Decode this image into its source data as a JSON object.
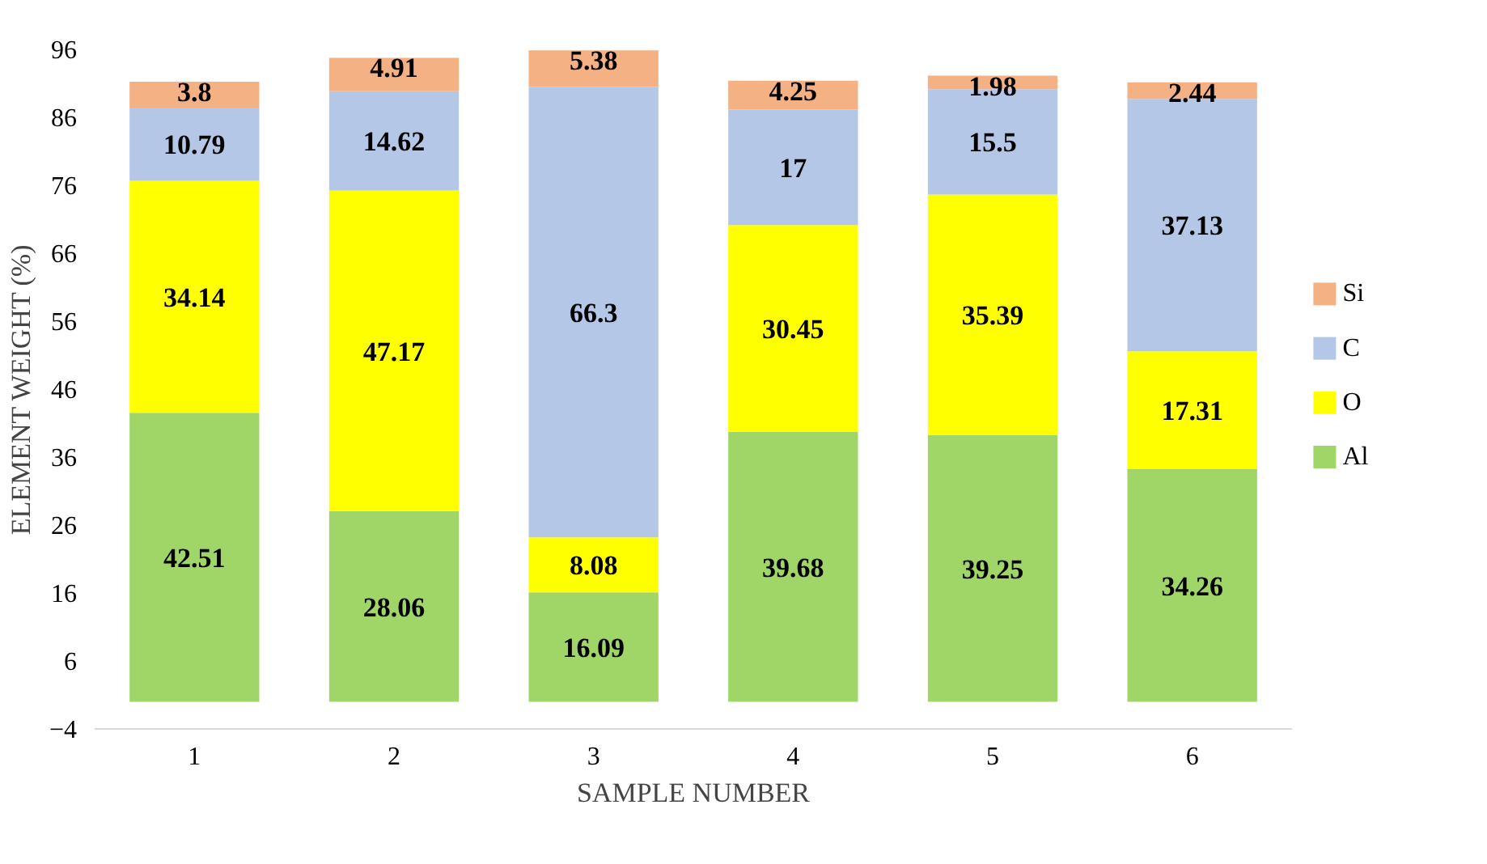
{
  "chart_data": {
    "type": "bar",
    "stacked": true,
    "xlabel": "SAMPLE NUMBER",
    "ylabel": "ELEMENT WEIGHT (%)",
    "categories": [
      "1",
      "2",
      "3",
      "4",
      "5",
      "6"
    ],
    "series": [
      {
        "name": "Al",
        "color": "#a0d568",
        "values": [
          42.51,
          28.06,
          16.09,
          39.68,
          39.25,
          34.26
        ]
      },
      {
        "name": "O",
        "color": "#ffff00",
        "values": [
          34.14,
          47.17,
          8.08,
          30.45,
          35.39,
          17.31
        ]
      },
      {
        "name": "C",
        "color": "#b4c7e7",
        "values": [
          10.79,
          14.62,
          66.3,
          17,
          15.5,
          37.13
        ]
      },
      {
        "name": "Si",
        "color": "#f4b183",
        "values": [
          3.8,
          4.91,
          5.38,
          4.25,
          1.98,
          2.44
        ]
      }
    ],
    "ylim": [
      -4,
      96
    ],
    "yticks": [
      -4,
      6,
      16,
      26,
      36,
      46,
      56,
      66,
      76,
      86,
      96
    ],
    "data_labels": true,
    "legend": "right",
    "grid": false
  }
}
